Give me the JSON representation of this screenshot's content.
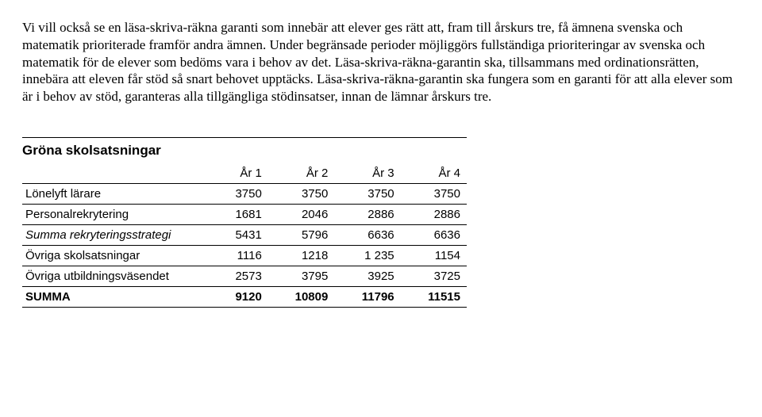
{
  "paragraph": "Vi vill också se en läsa-skriva-räkna garanti som innebär att elever ges rätt att, fram till årskurs tre, få ämnena svenska och matematik prioriterade framför andra ämnen. Under begränsade perioder möjliggörs fullständiga prioriteringar av svenska och matematik för de elever som bedöms vara i behov av det. Läsa-skriva-räkna-garantin ska, tillsammans med ordinationsrätten, innebära att eleven får stöd så snart behovet upptäcks. Läsa-skriva-räkna-garantin ska fungera som en garanti för att alla elever som är i behov av stöd, garanteras alla tillgängliga stödinsatser, innan de lämnar årskurs tre.",
  "section_title": "Gröna skolsatsningar",
  "table": {
    "headers": [
      "",
      "År 1",
      "År 2",
      "År 3",
      "År 4"
    ],
    "rows": [
      {
        "label": "Lönelyft lärare",
        "italic": false,
        "bold": false,
        "values": [
          "3750",
          "3750",
          "3750",
          "3750"
        ]
      },
      {
        "label": "Personalrekrytering",
        "italic": false,
        "bold": false,
        "values": [
          "1681",
          "2046",
          "2886",
          "2886"
        ]
      },
      {
        "label": "Summa rekryteringsstrategi",
        "italic": true,
        "bold": false,
        "values": [
          "5431",
          "5796",
          "6636",
          "6636"
        ]
      },
      {
        "label": "Övriga skolsatsningar",
        "italic": false,
        "bold": false,
        "values": [
          "1116",
          "1218",
          "1 235",
          "1154"
        ]
      },
      {
        "label": "Övriga utbildningsväsendet",
        "italic": false,
        "bold": false,
        "values": [
          "2573",
          "3795",
          "3925",
          "3725"
        ]
      },
      {
        "label": "SUMMA",
        "italic": false,
        "bold": true,
        "values": [
          "9120",
          "10809",
          "11796",
          "11515"
        ]
      }
    ]
  }
}
